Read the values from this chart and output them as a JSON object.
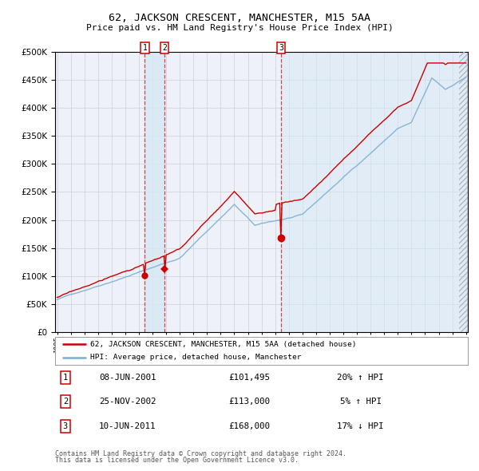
{
  "title": "62, JACKSON CRESCENT, MANCHESTER, M15 5AA",
  "subtitle": "Price paid vs. HM Land Registry's House Price Index (HPI)",
  "legend_line1": "62, JACKSON CRESCENT, MANCHESTER, M15 5AA (detached house)",
  "legend_line2": "HPI: Average price, detached house, Manchester",
  "footer1": "Contains HM Land Registry data © Crown copyright and database right 2024.",
  "footer2": "This data is licensed under the Open Government Licence v3.0.",
  "table": [
    {
      "num": "1",
      "date": "08-JUN-2001",
      "price": "£101,495",
      "pct": "20% ↑ HPI"
    },
    {
      "num": "2",
      "date": "25-NOV-2002",
      "price": "£113,000",
      "pct": "5% ↑ HPI"
    },
    {
      "num": "3",
      "date": "10-JUN-2011",
      "price": "£168,000",
      "pct": "17% ↓ HPI"
    }
  ],
  "sale1_year": 2001.44,
  "sale1_price": 101495,
  "sale2_year": 2002.9,
  "sale2_price": 113000,
  "sale3_year": 2011.44,
  "sale3_price": 168000,
  "hpi_color": "#7bafd4",
  "price_color": "#cc0000",
  "ylim_max": 500000,
  "background_color": "#ffffff",
  "plot_bg_color": "#eef2f8"
}
